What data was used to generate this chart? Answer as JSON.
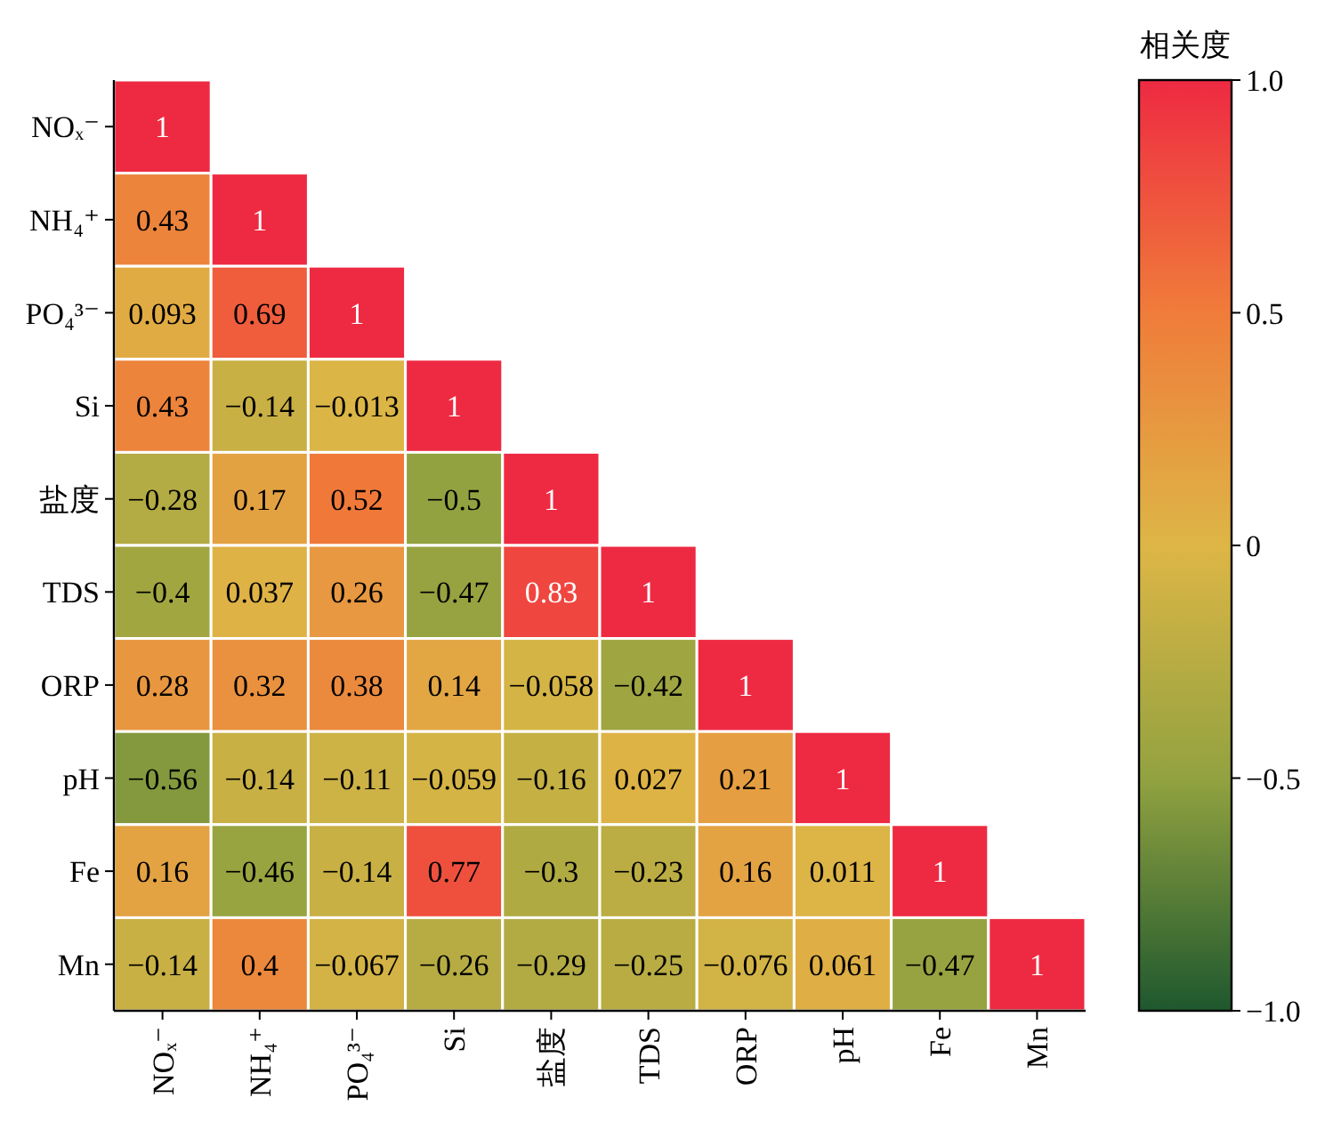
{
  "chart_data": {
    "type": "heatmap",
    "clabel": "相关度",
    "categories": [
      "NOₓ⁻",
      "NH₄⁺",
      "PO₄³⁻",
      "Si",
      "盐度",
      "TDS",
      "ORP",
      "pH",
      "Fe",
      "Mn"
    ],
    "y_categories": [
      "NOₓ⁻",
      "NH₄⁺",
      "PO₄³⁻",
      "Si",
      "盐度",
      "TDS",
      "ORP",
      "pH",
      "Fe",
      "Mn"
    ],
    "cells": [
      [
        1,
        null,
        null,
        null,
        null,
        null,
        null,
        null,
        null,
        null
      ],
      [
        0.43,
        1,
        null,
        null,
        null,
        null,
        null,
        null,
        null,
        null
      ],
      [
        0.093,
        0.69,
        1,
        null,
        null,
        null,
        null,
        null,
        null,
        null
      ],
      [
        0.43,
        -0.14,
        -0.013,
        1,
        null,
        null,
        null,
        null,
        null,
        null
      ],
      [
        -0.28,
        0.17,
        0.52,
        -0.5,
        1,
        null,
        null,
        null,
        null,
        null
      ],
      [
        -0.4,
        0.037,
        0.26,
        -0.47,
        0.83,
        1,
        null,
        null,
        null,
        null
      ],
      [
        0.28,
        0.32,
        0.38,
        0.14,
        -0.058,
        -0.42,
        1,
        null,
        null,
        null
      ],
      [
        -0.56,
        -0.14,
        -0.11,
        -0.059,
        -0.16,
        0.027,
        0.21,
        1,
        null,
        null
      ],
      [
        0.16,
        -0.46,
        -0.14,
        0.77,
        -0.3,
        -0.23,
        0.16,
        0.011,
        1,
        null
      ],
      [
        -0.14,
        0.4,
        -0.067,
        -0.26,
        -0.29,
        -0.25,
        -0.076,
        0.061,
        -0.47,
        1
      ]
    ],
    "data_labels": true,
    "clim": [
      -1,
      1
    ],
    "cticks": [
      {
        "value": -1,
        "label": "−1.0"
      },
      {
        "value": -0.5,
        "label": "−0.5"
      },
      0,
      {
        "value": 0.5,
        "label": "0.5"
      },
      {
        "value": 1,
        "label": "1.0"
      }
    ]
  }
}
